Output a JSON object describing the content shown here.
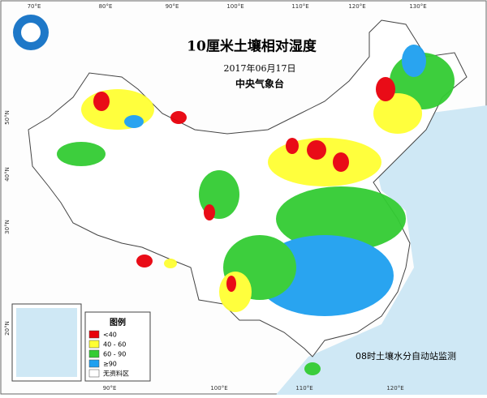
{
  "header": {
    "title": "10厘米土壤相对湿度",
    "date": "2017年06月17日",
    "agency": "中央气象台"
  },
  "axes": {
    "top": [
      "70°E",
      "80°E",
      "90°E",
      "100°E",
      "110°E",
      "120°E",
      "130°E"
    ],
    "bottom": [
      "90°E",
      "100°E",
      "110°E",
      "120°E"
    ],
    "left": [
      "50°N",
      "40°N",
      "30°N",
      "20°N"
    ]
  },
  "legend": {
    "title": "图例",
    "items": [
      {
        "label": "<40",
        "color": "#e8000b"
      },
      {
        "label": "40 - 60",
        "color": "#ffff33"
      },
      {
        "label": "60 - 90",
        "color": "#33cc33"
      },
      {
        "label": "≥90",
        "color": "#1ea0f0"
      },
      {
        "label": "无资料区",
        "color": "#ffffff"
      }
    ]
  },
  "note": "08时土壤水分自动站监测"
}
